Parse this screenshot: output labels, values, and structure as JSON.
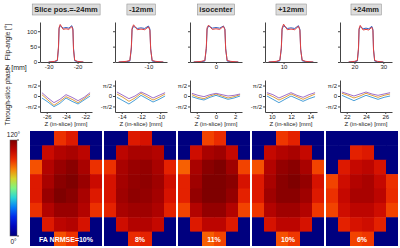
{
  "chart_data": [
    {
      "type": "line",
      "ylabel": "Flip-angle [°]",
      "xlabel": "Z [mm]",
      "ylim": [
        0,
        130
      ],
      "yticks": [
        0,
        50,
        100
      ],
      "panels": [
        {
          "title": "Slice pos.=-24mm",
          "xlim": [
            -33,
            -15
          ],
          "xticks": [
            -30,
            -20
          ],
          "x": [
            -30,
            -28,
            -27,
            -26.6,
            -26.4,
            -26,
            -25,
            -24,
            -23,
            -22,
            -21.6,
            -21.4,
            -21,
            -20,
            -18
          ],
          "series": [
            {
              "color": "#3060c0",
              "values": [
                0,
                1,
                4,
                45,
                108,
                118,
                110,
                112,
                110,
                118,
                108,
                45,
                4,
                1,
                0
              ]
            },
            {
              "color": "#e04040",
              "values": [
                0,
                2,
                6,
                50,
                112,
                122,
                106,
                108,
                106,
                115,
                104,
                40,
                6,
                2,
                0
              ]
            }
          ]
        },
        {
          "title": "-12mm",
          "xlim": [
            -19,
            -5
          ],
          "xticks": [
            -10
          ],
          "x": [
            -18,
            -16,
            -15,
            -14.6,
            -14.4,
            -14,
            -13,
            -12,
            -11,
            -10,
            -9.6,
            -9.4,
            -9,
            -8,
            -6
          ],
          "series": [
            {
              "color": "#3060c0",
              "values": [
                0,
                1,
                3,
                42,
                106,
                116,
                109,
                111,
                109,
                117,
                107,
                44,
                3,
                1,
                0
              ]
            },
            {
              "color": "#e04040",
              "values": [
                0,
                2,
                5,
                48,
                110,
                121,
                105,
                107,
                105,
                114,
                103,
                41,
                5,
                2,
                0
              ]
            }
          ]
        },
        {
          "title": "isocenter",
          "xlim": [
            -7,
            7
          ],
          "xticks": [
            0
          ],
          "x": [
            -6,
            -4,
            -3,
            -2.6,
            -2.4,
            -2,
            -1,
            0,
            1,
            2,
            2.4,
            2.6,
            3,
            4,
            6
          ],
          "series": [
            {
              "color": "#3060c0",
              "values": [
                0,
                1,
                3,
                44,
                107,
                117,
                110,
                112,
                110,
                117,
                107,
                44,
                3,
                1,
                0
              ]
            },
            {
              "color": "#e04040",
              "values": [
                0,
                2,
                5,
                49,
                111,
                120,
                106,
                108,
                106,
                116,
                105,
                42,
                5,
                2,
                0
              ]
            }
          ]
        },
        {
          "title": "+12mm",
          "xlim": [
            5,
            19
          ],
          "xticks": [
            10
          ],
          "x": [
            6,
            8,
            9,
            9.4,
            9.6,
            10,
            11,
            12,
            13,
            14,
            14.4,
            14.6,
            15,
            16,
            18
          ],
          "series": [
            {
              "color": "#3060c0",
              "values": [
                0,
                1,
                4,
                43,
                106,
                118,
                109,
                111,
                109,
                118,
                106,
                43,
                4,
                1,
                0
              ]
            },
            {
              "color": "#e04040",
              "values": [
                0,
                2,
                6,
                47,
                110,
                123,
                105,
                107,
                105,
                116,
                103,
                40,
                6,
                2,
                0
              ]
            }
          ]
        },
        {
          "title": "+24mm",
          "xlim": [
            15,
            33
          ],
          "xticks": [
            20,
            30
          ],
          "x": [
            18,
            20,
            21,
            21.4,
            21.6,
            22,
            23,
            24,
            25,
            26,
            26.4,
            26.6,
            27,
            28,
            30
          ],
          "series": [
            {
              "color": "#3060c0",
              "values": [
                0,
                1,
                3,
                41,
                105,
                115,
                108,
                110,
                108,
                116,
                106,
                42,
                3,
                1,
                0
              ]
            },
            {
              "color": "#e04040",
              "values": [
                0,
                2,
                5,
                46,
                109,
                119,
                104,
                106,
                104,
                113,
                102,
                39,
                5,
                2,
                0
              ]
            }
          ]
        }
      ]
    },
    {
      "type": "line",
      "ylabel": "Through-slice phase",
      "xlabel": "Z (in-slice) [mm]",
      "ylim": [
        -2.4,
        2.4
      ],
      "yticks": [
        {
          "value": -1.5708,
          "label": "-π/2"
        },
        0,
        {
          "value": 1.5708,
          "label": "π/2"
        }
      ],
      "panels": [
        {
          "xlim": [
            -26.7,
            -21.3
          ],
          "xticks": [
            -26,
            -24,
            -22
          ],
          "x": [
            -26.5,
            -25.875,
            -25.25,
            -24.625,
            -24,
            -23.375,
            -22.75,
            -22.125,
            -21.5
          ],
          "series": [
            {
              "color": "#e0a040",
              "values": [
                0.2,
                -0.6,
                -1.4,
                -0.8,
                -0.1,
                -0.5,
                -1.0,
                -0.4,
                0.3
              ]
            },
            {
              "color": "#4aa0d8",
              "values": [
                -0.3,
                -0.9,
                -1.6,
                -1.1,
                -0.3,
                -0.8,
                -1.2,
                -0.6,
                0.0
              ]
            },
            {
              "color": "#a070c8",
              "values": [
                0.5,
                -0.3,
                -1.0,
                -0.5,
                0.2,
                -0.2,
                -0.7,
                -0.2,
                0.5
              ]
            }
          ]
        },
        {
          "xlim": [
            -14.7,
            -9.3
          ],
          "xticks": [
            -14,
            -12,
            -10
          ],
          "x": [
            -14.5,
            -13.875,
            -13.25,
            -12.625,
            -12,
            -11.375,
            -10.75,
            -10.125,
            -9.5
          ],
          "series": [
            {
              "color": "#e0a040",
              "values": [
                0.3,
                -0.2,
                -0.8,
                -0.3,
                0.4,
                -0.1,
                -0.6,
                -0.2,
                0.3
              ]
            },
            {
              "color": "#4aa0d8",
              "values": [
                -0.2,
                -0.7,
                -1.2,
                -0.6,
                0.1,
                -0.4,
                -0.9,
                -0.5,
                0.0
              ]
            },
            {
              "color": "#a070c8",
              "values": [
                0.6,
                0.1,
                -0.4,
                0.0,
                0.6,
                0.2,
                -0.3,
                0.1,
                0.5
              ]
            }
          ]
        },
        {
          "xlim": [
            -2.7,
            2.7
          ],
          "xticks": [
            -2,
            0,
            2
          ],
          "x": [
            -2.5,
            -1.875,
            -1.25,
            -0.625,
            0,
            0.625,
            1.25,
            1.875,
            2.5
          ],
          "series": [
            {
              "color": "#e0a040",
              "values": [
                0.2,
                -0.2,
                -0.4,
                0.0,
                0.3,
                0.0,
                -0.3,
                -0.1,
                0.2
              ]
            },
            {
              "color": "#4aa0d8",
              "values": [
                -0.1,
                -0.4,
                -0.6,
                -0.2,
                0.1,
                -0.2,
                -0.5,
                -0.3,
                0.0
              ]
            },
            {
              "color": "#a070c8",
              "values": [
                0.4,
                0.1,
                -0.1,
                0.2,
                0.4,
                0.2,
                0.0,
                0.1,
                0.3
              ]
            }
          ]
        },
        {
          "xlim": [
            9.3,
            14.7
          ],
          "xticks": [
            10,
            12,
            14
          ],
          "x": [
            9.5,
            10.125,
            10.75,
            11.375,
            12,
            12.625,
            13.25,
            13.875,
            14.5
          ],
          "series": [
            {
              "color": "#e0a040",
              "values": [
                0.3,
                -0.1,
                -0.6,
                -0.2,
                0.3,
                -0.1,
                -0.5,
                -0.1,
                0.3
              ]
            },
            {
              "color": "#4aa0d8",
              "values": [
                0.0,
                -0.5,
                -1.0,
                -0.5,
                0.0,
                -0.4,
                -0.8,
                -0.4,
                -0.1
              ]
            },
            {
              "color": "#a070c8",
              "values": [
                0.5,
                0.2,
                -0.3,
                0.1,
                0.5,
                0.1,
                -0.2,
                0.2,
                0.5
              ]
            }
          ]
        },
        {
          "xlim": [
            21.3,
            26.7
          ],
          "xticks": [
            22,
            24,
            26
          ],
          "x": [
            21.5,
            22.125,
            22.75,
            23.375,
            24,
            24.625,
            25.25,
            25.875,
            26.5
          ],
          "series": [
            {
              "color": "#e0a040",
              "values": [
                0.4,
                0.1,
                -0.3,
                0.0,
                0.4,
                0.1,
                -0.2,
                0.1,
                0.3
              ]
            },
            {
              "color": "#4aa0d8",
              "values": [
                0.1,
                -0.3,
                -0.7,
                -0.3,
                0.1,
                -0.2,
                -0.5,
                -0.2,
                0.0
              ]
            },
            {
              "color": "#a070c8",
              "values": [
                0.6,
                0.3,
                0.0,
                0.3,
                0.6,
                0.3,
                0.1,
                0.3,
                0.5
              ]
            }
          ]
        }
      ]
    },
    {
      "type": "heatmap",
      "colorbar": {
        "range": [
          0,
          120
        ],
        "ticks": [
          {
            "value": 120,
            "label": "120°"
          },
          {
            "value": 0,
            "label": "0°"
          }
        ]
      },
      "panels": [
        {
          "annotation": "FA NRMSE=10%",
          "cells": [
            [
              0,
              0,
              95,
              100,
              0,
              0
            ],
            [
              0,
              105,
              110,
              112,
              108,
              0
            ],
            [
              90,
              110,
              115,
              118,
              112,
              95
            ],
            [
              100,
              112,
              118,
              120,
              115,
              105
            ],
            [
              100,
              115,
              120,
              118,
              112,
              100
            ],
            [
              95,
              110,
              115,
              115,
              110,
              95
            ],
            [
              0,
              100,
              108,
              110,
              102,
              0
            ],
            [
              0,
              0,
              90,
              95,
              0,
              0
            ]
          ]
        },
        {
          "annotation": "8%",
          "cells": [
            [
              0,
              0,
              100,
              102,
              0,
              0
            ],
            [
              0,
              108,
              112,
              112,
              110,
              0
            ],
            [
              95,
              112,
              115,
              116,
              112,
              98
            ],
            [
              102,
              113,
              116,
              117,
              114,
              104
            ],
            [
              102,
              114,
              117,
              116,
              113,
              102
            ],
            [
              98,
              112,
              114,
              114,
              111,
              98
            ],
            [
              0,
              104,
              110,
              110,
              106,
              0
            ],
            [
              0,
              0,
              96,
              98,
              0,
              0
            ]
          ]
        },
        {
          "annotation": "11%",
          "cells": [
            [
              0,
              0,
              92,
              96,
              0,
              0
            ],
            [
              0,
              104,
              112,
              114,
              106,
              0
            ],
            [
              88,
              112,
              118,
              120,
              114,
              92
            ],
            [
              98,
              114,
              120,
              122,
              118,
              102
            ],
            [
              98,
              116,
              120,
              120,
              116,
              98
            ],
            [
              92,
              110,
              116,
              116,
              110,
              92
            ],
            [
              0,
              100,
              108,
              108,
              100,
              0
            ],
            [
              0,
              0,
              88,
              92,
              0,
              0
            ]
          ]
        },
        {
          "annotation": "10%",
          "cells": [
            [
              0,
              0,
              94,
              98,
              0,
              0
            ],
            [
              0,
              106,
              110,
              112,
              106,
              0
            ],
            [
              90,
              110,
              116,
              118,
              112,
              92
            ],
            [
              100,
              112,
              118,
              120,
              116,
              102
            ],
            [
              100,
              114,
              118,
              118,
              114,
              100
            ],
            [
              94,
              110,
              114,
              114,
              110,
              94
            ],
            [
              0,
              102,
              108,
              108,
              102,
              0
            ],
            [
              0,
              0,
              90,
              94,
              0,
              0
            ]
          ]
        },
        {
          "annotation": "6%",
          "cells": [
            [
              0,
              0,
              0,
              0,
              0,
              0
            ],
            [
              0,
              0,
              98,
              100,
              0,
              0
            ],
            [
              0,
              100,
              106,
              108,
              102,
              0
            ],
            [
              92,
              104,
              110,
              112,
              106,
              95
            ],
            [
              95,
              106,
              112,
              112,
              108,
              96
            ],
            [
              92,
              104,
              108,
              108,
              104,
              92
            ],
            [
              0,
              98,
              102,
              104,
              98,
              0
            ],
            [
              0,
              0,
              92,
              94,
              0,
              0
            ]
          ]
        }
      ]
    }
  ]
}
